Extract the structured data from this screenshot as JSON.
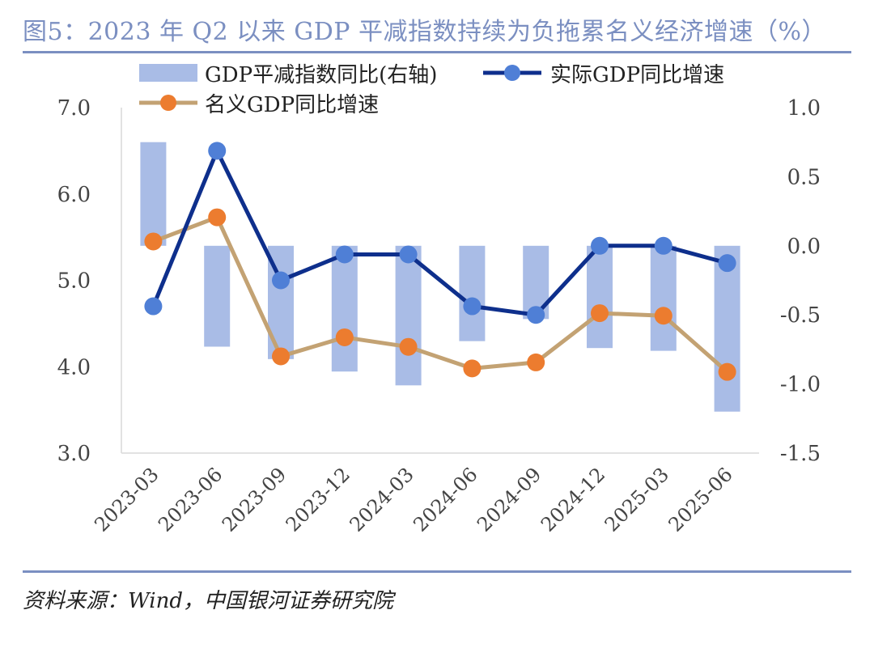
{
  "title": "图5：2023 年 Q2 以来 GDP 平减指数持续为负拖累名义经济增速（%）",
  "source": "资料来源：Wind，中国银河证券研究院",
  "colors": {
    "title": "#7b8fc1",
    "bar": "#a9bce6",
    "real_line": "#0e2f8c",
    "real_marker": "#4f7fd6",
    "nominal_line": "#c3a273",
    "nominal_marker": "#ec7c2f",
    "axis": "#d9d9d9"
  },
  "chart_data": {
    "type": "bar+line",
    "categories": [
      "2023-03",
      "2023-06",
      "2023-09",
      "2023-12",
      "2024-03",
      "2024-06",
      "2024-09",
      "2024-12",
      "2025-03",
      "2025-06"
    ],
    "left_axis": {
      "ylim": [
        3.0,
        7.0
      ],
      "ticks": [
        "7.0",
        "6.0",
        "5.0",
        "4.0",
        "3.0"
      ]
    },
    "right_axis": {
      "ylim": [
        -1.5,
        1.0
      ],
      "ticks": [
        "1.0",
        "0.5",
        "0.0",
        "-0.5",
        "-1.0",
        "-1.5"
      ]
    },
    "series": [
      {
        "name": "GDP平减指数同比(右轴)",
        "type": "bar",
        "axis": "right",
        "values": [
          0.75,
          -0.73,
          -0.82,
          -0.91,
          -1.01,
          -0.69,
          -0.53,
          -0.74,
          -0.76,
          -1.2
        ]
      },
      {
        "name": "实际GDP同比增速",
        "type": "line",
        "axis": "left",
        "values": [
          4.7,
          6.5,
          5.0,
          5.3,
          5.3,
          4.7,
          4.6,
          5.4,
          5.4,
          5.2
        ]
      },
      {
        "name": "名义GDP同比增速",
        "type": "line",
        "axis": "left",
        "values": [
          5.45,
          5.73,
          4.12,
          4.34,
          4.23,
          3.98,
          4.05,
          4.62,
          4.59,
          3.94
        ]
      }
    ],
    "legend": {
      "bar": "GDP平减指数同比(右轴)",
      "real": "实际GDP同比增速",
      "nominal": "名义GDP同比增速"
    }
  }
}
